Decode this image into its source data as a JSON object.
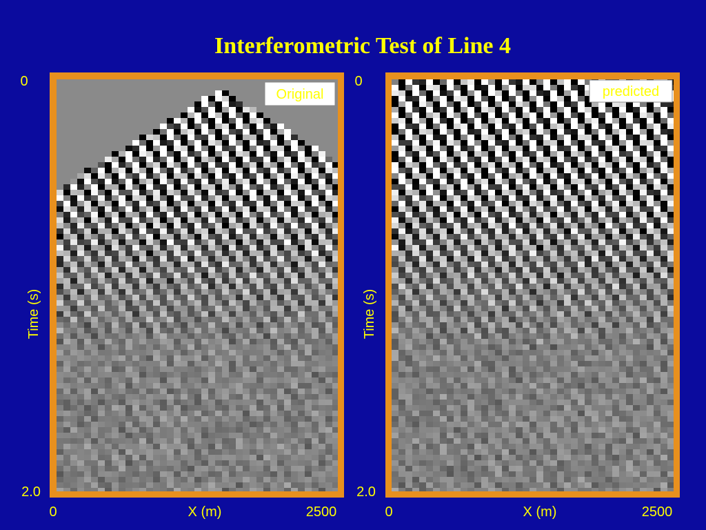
{
  "title": "Interferometric Test of Line 4",
  "panels": [
    {
      "label": "Original",
      "y_axis_label": "Time (s)",
      "y_ticks": [
        "0",
        "2.0"
      ],
      "x_axis_label": "X (m)",
      "x_ticks": [
        "0",
        "2500"
      ]
    },
    {
      "label": "predicted",
      "y_axis_label": "Time (s)",
      "y_ticks": [
        "0",
        "2.0"
      ],
      "x_axis_label": "X (m)",
      "x_ticks": [
        "0",
        "2500"
      ]
    }
  ]
}
